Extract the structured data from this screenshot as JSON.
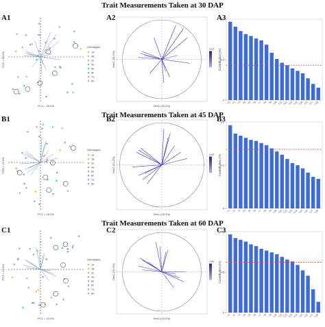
{
  "sections": [
    {
      "title": "Trait Measurements Taken at 30 DAP",
      "labels": [
        "A1",
        "A2",
        "A3"
      ],
      "pca": {
        "xlabel": "PC1 = 33.2%",
        "ylabel": "PC2 = 18.0%"
      },
      "corr": {
        "xlabel": "Dim1 (33.2%)",
        "ylabel": "Dim2 (18.0%)"
      }
    },
    {
      "title": "Trait Measurements Taken at 45 DAP",
      "labels": [
        "B1",
        "B2",
        "B3"
      ],
      "pca": {
        "xlabel": "PC1 = 26.3%",
        "ylabel": "PC2 = 21.0%"
      },
      "corr": {
        "xlabel": "Dim1 (26.3%)",
        "ylabel": "Dim2 (21.0%)"
      }
    },
    {
      "title": "Trait Measurements Taken at 60 DAP",
      "labels": [
        "C1",
        "C2",
        "C3"
      ],
      "pca": {
        "xlabel": "PC1 = 23.4%",
        "ylabel": "PC2 = 13.9%"
      },
      "corr": {
        "xlabel": "Dim1 (23.4%)",
        "ylabel": "Dim2 (13.9%)"
      }
    }
  ],
  "legend": {
    "title": "Genotypes",
    "items": [
      "1A",
      "2B",
      "3C",
      "4D",
      "5E",
      "6F",
      "7G",
      "8H"
    ],
    "colors": [
      "#e6a9a0",
      "#d9c86a",
      "#8fc98a",
      "#6cc7b8",
      "#6fb6e6",
      "#9a9ae6",
      "#d68ad6",
      "#c8a0c8"
    ]
  },
  "colorbar": {
    "title": "cos2"
  },
  "colors": {
    "bar": "#3e6cd6",
    "vector": "#5548b8",
    "refline": "#d9534f"
  },
  "chart_data": [
    {
      "type": "bar",
      "panel": "A3",
      "ylabel": "Contribution (%)",
      "categories": [
        "T1",
        "T2",
        "T3",
        "T4",
        "T5",
        "T6",
        "T7",
        "T8",
        "T9",
        "T10",
        "T11",
        "T12",
        "T13",
        "T14",
        "T15",
        "T16",
        "T17",
        "T18"
      ],
      "values": [
        12.6,
        11.8,
        11.1,
        10.6,
        10.3,
        9.9,
        9.6,
        8.9,
        7.6,
        6.6,
        6.0,
        5.6,
        5.1,
        4.7,
        4.3,
        3.5,
        2.6,
        2.0
      ],
      "reference_line": 5.6,
      "ylim": [
        0,
        13
      ]
    },
    {
      "type": "bar",
      "panel": "B3",
      "ylabel": "Contribution (%)",
      "categories": [
        "T1",
        "T2",
        "T3",
        "T4",
        "T5",
        "T6",
        "T7",
        "T8",
        "T9",
        "T10",
        "T11",
        "T12",
        "T13",
        "T14",
        "T15",
        "T16",
        "T17",
        "T18"
      ],
      "values": [
        7.9,
        7.1,
        6.9,
        6.7,
        6.5,
        6.4,
        6.2,
        6.0,
        5.7,
        5.4,
        5.1,
        4.7,
        4.3,
        4.1,
        3.8,
        3.4,
        3.0,
        2.8
      ],
      "reference_line": 5.6,
      "ylim": [
        0,
        8.2
      ]
    },
    {
      "type": "bar",
      "panel": "C3",
      "ylabel": "Contribution (%)",
      "categories": [
        "T1",
        "T2",
        "T3",
        "T4",
        "T5",
        "T6",
        "T7",
        "T8",
        "T9",
        "T10",
        "T11",
        "T12",
        "T13",
        "T14",
        "T15",
        "T16",
        "T17",
        "T18"
      ],
      "values": [
        8.7,
        8.3,
        8.1,
        7.9,
        7.6,
        7.4,
        7.1,
        6.9,
        6.7,
        6.5,
        6.2,
        5.9,
        5.7,
        5.3,
        4.7,
        4.1,
        2.6,
        1.2
      ],
      "reference_line": 5.6,
      "ylim": [
        0,
        9
      ]
    }
  ]
}
